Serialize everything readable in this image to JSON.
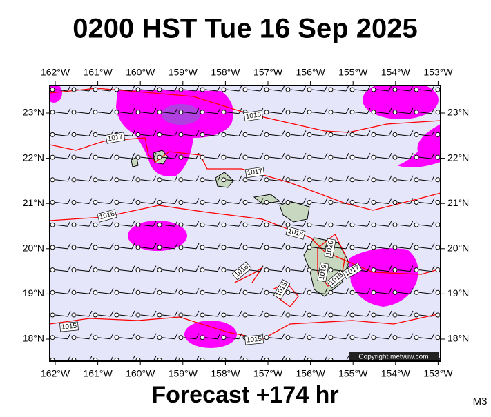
{
  "header": {
    "title": "0200 HST Tue 16 Sep 2025"
  },
  "map": {
    "lon_labels": [
      "162°W",
      "161°W",
      "160°W",
      "159°W",
      "158°W",
      "157°W",
      "156°W",
      "155°W",
      "154°W",
      "153°W"
    ],
    "lat_labels": [
      "23°N",
      "22°N",
      "21°N",
      "20°N",
      "19°N",
      "18°N"
    ],
    "isobar_labels": [
      "1016",
      "1017",
      "1017",
      "1016",
      "1016",
      "1016",
      "1015",
      "1020",
      "1019",
      "1018",
      "1017",
      "1015",
      "1015"
    ],
    "copyright": "Copyright metvuw.com"
  },
  "footer": {
    "forecast": "Forecast +174 hr",
    "model": "M3"
  }
}
